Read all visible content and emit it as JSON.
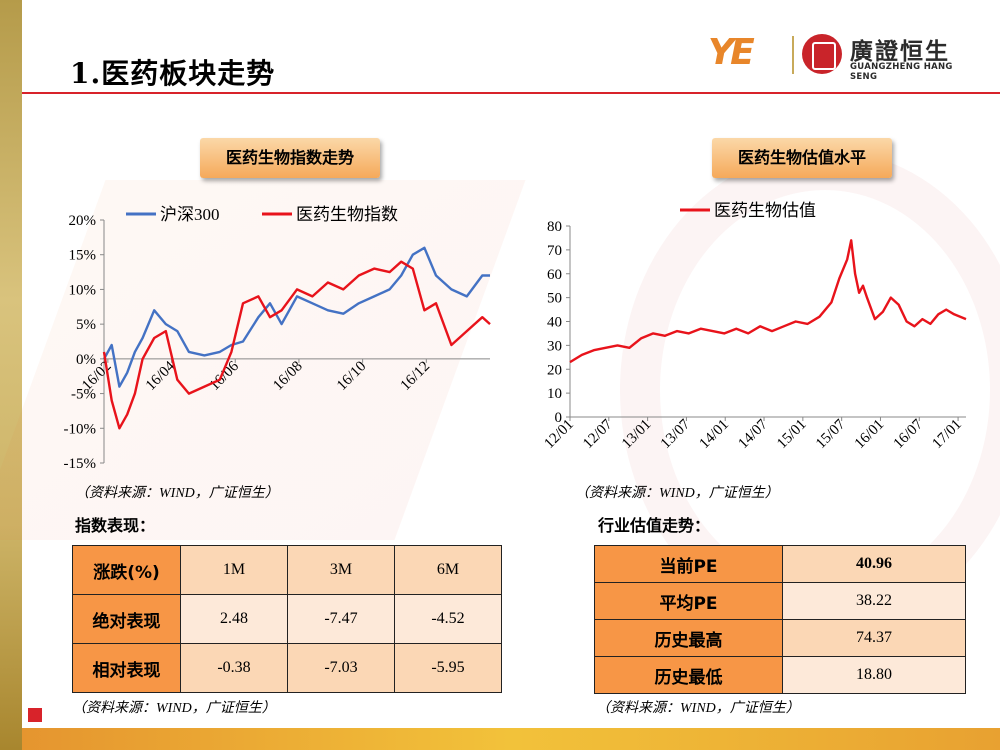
{
  "page": {
    "title": "1.医药板块走势"
  },
  "logo": {
    "mark": "YE",
    "name_cn": "廣證恒生",
    "name_en": "GUANGZHENG HANG SENG"
  },
  "chips": {
    "left": "医药生物指数走势",
    "right": "医药生物估值水平"
  },
  "sources": {
    "text": "（资料来源：WIND，广证恒生）"
  },
  "sections": {
    "index": "指数表现：",
    "valuation": "行业估值走势："
  },
  "colors": {
    "hs300": "#4472c4",
    "pharma": "#e8131b",
    "header_cell": "#f79646",
    "light_cell": "#fbd7b5"
  },
  "table_index": {
    "header": [
      "涨跌(%)",
      "1M",
      "3M",
      "6M"
    ],
    "rows": [
      {
        "label": "绝对表现",
        "values": [
          "2.48",
          "-7.47",
          "-4.52"
        ]
      },
      {
        "label": "相对表现",
        "values": [
          "-0.38",
          "-7.03",
          "-5.95"
        ]
      }
    ]
  },
  "table_pe": {
    "rows": [
      {
        "label": "当前PE",
        "value": "40.96"
      },
      {
        "label": "平均PE",
        "value": "38.22"
      },
      {
        "label": "历史最高",
        "value": "74.37"
      },
      {
        "label": "历史最低",
        "value": "18.80"
      }
    ]
  },
  "chart_data": [
    {
      "type": "line",
      "ylim": [
        -15,
        20
      ],
      "yticks": [
        "-15%",
        "-10%",
        "-5%",
        "0%",
        "5%",
        "10%",
        "15%",
        "20%"
      ],
      "xticks": [
        "16/02",
        "16/04",
        "16/06",
        "16/08",
        "16/10",
        "16/12"
      ],
      "legend": "top",
      "series": [
        {
          "name": "沪深300",
          "color": "#4472c4",
          "x": [
            0,
            0.02,
            0.04,
            0.06,
            0.08,
            0.1,
            0.13,
            0.16,
            0.19,
            0.22,
            0.26,
            0.3,
            0.33,
            0.36,
            0.4,
            0.43,
            0.46,
            0.5,
            0.54,
            0.58,
            0.62,
            0.66,
            0.7,
            0.74,
            0.77,
            0.8,
            0.83,
            0.86,
            0.9,
            0.94,
            0.98,
            1
          ],
          "y": [
            0,
            2,
            -4,
            -2,
            1,
            3,
            7,
            5,
            4,
            1,
            0.5,
            1,
            2,
            2.5,
            6,
            8,
            5,
            9,
            8,
            7,
            6.5,
            8,
            9,
            10,
            12,
            15,
            16,
            12,
            10,
            9,
            12,
            12
          ]
        },
        {
          "name": "医药生物指数",
          "color": "#e8131b",
          "x": [
            0,
            0.02,
            0.04,
            0.06,
            0.08,
            0.1,
            0.13,
            0.16,
            0.19,
            0.22,
            0.26,
            0.3,
            0.33,
            0.36,
            0.4,
            0.43,
            0.46,
            0.5,
            0.54,
            0.58,
            0.62,
            0.66,
            0.7,
            0.74,
            0.77,
            0.8,
            0.83,
            0.86,
            0.9,
            0.94,
            0.98,
            1
          ],
          "y": [
            1,
            -6,
            -10,
            -8,
            -5,
            0,
            3,
            4,
            -3,
            -5,
            -4,
            -3,
            1,
            8,
            9,
            6,
            7,
            10,
            9,
            11,
            10,
            12,
            13,
            12.5,
            14,
            13,
            7,
            8,
            2,
            4,
            6,
            5
          ]
        }
      ]
    },
    {
      "type": "line",
      "ylim": [
        0,
        80
      ],
      "yticks": [
        "0",
        "10",
        "20",
        "30",
        "40",
        "50",
        "60",
        "70",
        "80"
      ],
      "xticks": [
        "12/01",
        "12/07",
        "13/01",
        "13/07",
        "14/01",
        "14/07",
        "15/01",
        "15/07",
        "16/01",
        "16/07",
        "17/01"
      ],
      "legend": "top",
      "series": [
        {
          "name": "医药生物估值",
          "color": "#e8131b",
          "x": [
            0,
            0.03,
            0.06,
            0.09,
            0.12,
            0.15,
            0.18,
            0.21,
            0.24,
            0.27,
            0.3,
            0.33,
            0.36,
            0.39,
            0.42,
            0.45,
            0.48,
            0.51,
            0.54,
            0.57,
            0.6,
            0.63,
            0.66,
            0.68,
            0.7,
            0.71,
            0.72,
            0.73,
            0.74,
            0.75,
            0.77,
            0.79,
            0.81,
            0.83,
            0.85,
            0.87,
            0.89,
            0.91,
            0.93,
            0.95,
            0.97,
            1
          ],
          "y": [
            23,
            26,
            28,
            29,
            30,
            29,
            33,
            35,
            34,
            36,
            35,
            37,
            36,
            35,
            37,
            35,
            38,
            36,
            38,
            40,
            39,
            42,
            48,
            58,
            66,
            74,
            60,
            52,
            55,
            50,
            41,
            44,
            50,
            47,
            40,
            38,
            41,
            39,
            43,
            45,
            43,
            41
          ]
        }
      ]
    }
  ]
}
